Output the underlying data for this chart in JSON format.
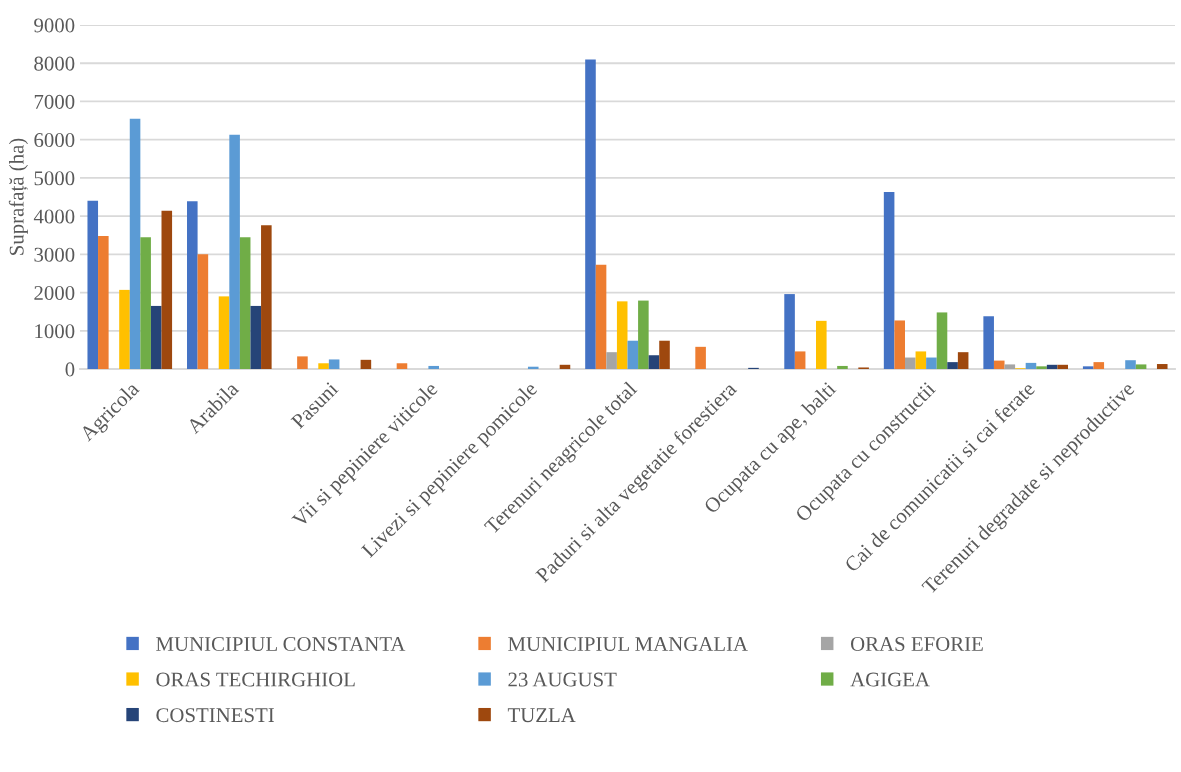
{
  "chart_data": {
    "type": "bar",
    "ylabel": "Suprafață (ha)",
    "categories": [
      "Agricola",
      "Arabila",
      "Pasuni",
      "Vii si pepiniere viticole",
      "Livezi si pepiniere pomicole",
      "Terenuri neagricole total",
      "Paduri si alta vegetatie forestiera",
      "Ocupata cu ape, balti",
      "Ocupata cu constructii",
      "Cai de comunicatii si cai ferate",
      "Terenuri degradate si neproductive"
    ],
    "series": [
      {
        "name": "MUNICIPIUL CONSTANTA",
        "color": "#4472c4",
        "values": [
          4400,
          4390,
          0,
          0,
          0,
          8100,
          0,
          1960,
          4630,
          1380,
          70
        ]
      },
      {
        "name": "MUNICIPIUL MANGALIA",
        "color": "#ed7d31",
        "values": [
          3480,
          3000,
          330,
          150,
          0,
          2730,
          580,
          460,
          1270,
          220,
          180
        ]
      },
      {
        "name": "ORAS EFORIE",
        "color": "#a5a5a5",
        "values": [
          0,
          0,
          0,
          0,
          0,
          440,
          0,
          0,
          300,
          120,
          0
        ]
      },
      {
        "name": "ORAS TECHIRGHIOL",
        "color": "#ffc000",
        "values": [
          2070,
          1900,
          150,
          0,
          0,
          1770,
          0,
          1260,
          460,
          20,
          0
        ]
      },
      {
        "name": "23 AUGUST",
        "color": "#5b9bd5",
        "values": [
          6550,
          6130,
          250,
          80,
          60,
          740,
          0,
          0,
          300,
          160,
          230
        ]
      },
      {
        "name": "AGIGEA",
        "color": "#70ad47",
        "values": [
          3450,
          3450,
          0,
          0,
          0,
          1790,
          0,
          80,
          1480,
          70,
          120
        ]
      },
      {
        "name": "COSTINESTI",
        "color": "#264478",
        "values": [
          1650,
          1650,
          0,
          0,
          0,
          360,
          30,
          0,
          180,
          110,
          0
        ]
      },
      {
        "name": "TUZLA",
        "color": "#9e480e",
        "values": [
          4140,
          3760,
          240,
          0,
          110,
          740,
          0,
          40,
          440,
          110,
          130
        ]
      }
    ],
    "ylim": [
      0,
      9000
    ],
    "yticks": [
      0,
      1000,
      2000,
      3000,
      4000,
      5000,
      6000,
      7000,
      8000,
      9000
    ],
    "grid": "y",
    "legend": "bottom"
  }
}
